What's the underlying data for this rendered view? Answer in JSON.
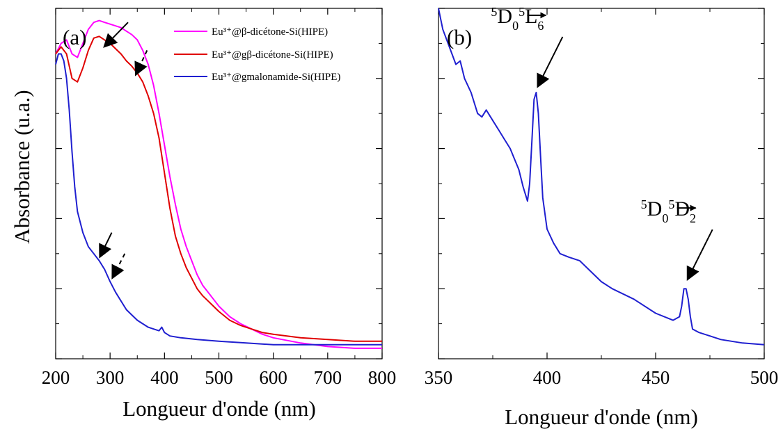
{
  "ylabel": "Absorbance (u.a.)",
  "chart_data": [
    {
      "id": "a",
      "type": "line",
      "panel_label": "(a)",
      "title": "",
      "xlabel": "Longueur d'onde (nm)",
      "ylabel": "Absorbance (u.a.)",
      "xlim": [
        200,
        800
      ],
      "ylim": [
        0,
        1
      ],
      "xticks": [
        200,
        300,
        400,
        500,
        600,
        700,
        800
      ],
      "y_tick_labels": false,
      "grid": false,
      "legend_position": "top-right",
      "series": [
        {
          "name": "Eu³⁺@β-dicétone-Si(HIPE)",
          "color": "#ff00ff",
          "x": [
            200,
            210,
            220,
            230,
            240,
            250,
            260,
            270,
            280,
            290,
            300,
            310,
            320,
            330,
            340,
            350,
            360,
            370,
            380,
            390,
            400,
            410,
            420,
            430,
            440,
            450,
            460,
            470,
            480,
            490,
            500,
            520,
            540,
            560,
            580,
            600,
            650,
            700,
            750,
            800
          ],
          "y": [
            0.87,
            0.9,
            0.91,
            0.87,
            0.86,
            0.9,
            0.94,
            0.96,
            0.965,
            0.96,
            0.955,
            0.95,
            0.945,
            0.935,
            0.925,
            0.91,
            0.88,
            0.84,
            0.78,
            0.7,
            0.61,
            0.52,
            0.44,
            0.37,
            0.32,
            0.28,
            0.24,
            0.21,
            0.19,
            0.17,
            0.15,
            0.12,
            0.1,
            0.085,
            0.07,
            0.06,
            0.045,
            0.035,
            0.03,
            0.03
          ]
        },
        {
          "name": "Eu³⁺@gβ-dicétone-Si(HIPE)",
          "color": "#e00000",
          "x": [
            200,
            210,
            220,
            230,
            240,
            250,
            260,
            270,
            280,
            290,
            300,
            310,
            320,
            330,
            340,
            350,
            360,
            370,
            380,
            390,
            400,
            410,
            420,
            430,
            440,
            450,
            460,
            470,
            480,
            490,
            500,
            520,
            540,
            560,
            580,
            600,
            650,
            700,
            750,
            800
          ],
          "y": [
            0.87,
            0.89,
            0.87,
            0.8,
            0.79,
            0.83,
            0.88,
            0.915,
            0.92,
            0.91,
            0.9,
            0.885,
            0.87,
            0.85,
            0.835,
            0.815,
            0.79,
            0.75,
            0.7,
            0.63,
            0.53,
            0.43,
            0.35,
            0.3,
            0.26,
            0.23,
            0.2,
            0.18,
            0.165,
            0.15,
            0.135,
            0.11,
            0.095,
            0.085,
            0.075,
            0.07,
            0.06,
            0.055,
            0.05,
            0.05
          ]
        },
        {
          "name": "Eu³⁺@gmalonamide-Si(HIPE)",
          "color": "#1f1fd0",
          "x": [
            200,
            205,
            210,
            215,
            220,
            225,
            230,
            235,
            240,
            250,
            260,
            270,
            280,
            290,
            300,
            310,
            320,
            330,
            340,
            350,
            360,
            370,
            380,
            390,
            395,
            400,
            410,
            430,
            460,
            500,
            550,
            600,
            700,
            800
          ],
          "y": [
            0.84,
            0.87,
            0.87,
            0.85,
            0.8,
            0.71,
            0.59,
            0.49,
            0.42,
            0.36,
            0.32,
            0.3,
            0.28,
            0.255,
            0.22,
            0.19,
            0.165,
            0.14,
            0.125,
            0.11,
            0.1,
            0.09,
            0.085,
            0.08,
            0.09,
            0.075,
            0.065,
            0.06,
            0.055,
            0.05,
            0.045,
            0.04,
            0.04,
            0.04
          ]
        }
      ],
      "arrows": [
        {
          "style": "solid",
          "from": [
            333,
            0.96
          ],
          "to": [
            289,
            0.89
          ]
        },
        {
          "style": "dashed",
          "from": [
            368,
            0.88
          ],
          "to": [
            347,
            0.81
          ]
        },
        {
          "style": "solid",
          "from": [
            303,
            0.36
          ],
          "to": [
            281,
            0.29
          ]
        },
        {
          "style": "dashed",
          "from": [
            327,
            0.3
          ],
          "to": [
            304,
            0.23
          ]
        }
      ]
    },
    {
      "id": "b",
      "type": "line",
      "panel_label": "(b)",
      "title": "",
      "xlabel": "Longueur d'onde (nm)",
      "ylabel": "",
      "xlim": [
        350,
        500
      ],
      "ylim": [
        0,
        1
      ],
      "xticks": [
        350,
        400,
        450,
        500
      ],
      "y_tick_labels": false,
      "grid": false,
      "series": [
        {
          "color": "#1f1fd0",
          "x": [
            350,
            352,
            355,
            358,
            360,
            362,
            365,
            368,
            370,
            372,
            375,
            378,
            380,
            383,
            385,
            387,
            389,
            391,
            392,
            393,
            394,
            395,
            396,
            397,
            398,
            400,
            403,
            406,
            410,
            415,
            420,
            425,
            430,
            440,
            450,
            458,
            461,
            462,
            463,
            464,
            465,
            466,
            467,
            470,
            475,
            480,
            490,
            500
          ],
          "y": [
            1.0,
            0.94,
            0.89,
            0.84,
            0.85,
            0.8,
            0.76,
            0.7,
            0.69,
            0.71,
            0.68,
            0.65,
            0.63,
            0.6,
            0.57,
            0.54,
            0.49,
            0.45,
            0.5,
            0.62,
            0.74,
            0.76,
            0.7,
            0.58,
            0.46,
            0.37,
            0.33,
            0.3,
            0.29,
            0.28,
            0.25,
            0.22,
            0.2,
            0.17,
            0.13,
            0.11,
            0.12,
            0.15,
            0.2,
            0.2,
            0.17,
            0.12,
            0.085,
            0.075,
            0.065,
            0.055,
            0.045,
            0.04
          ]
        }
      ],
      "annotations": [
        {
          "state_from": "D",
          "sub_from": "0",
          "sup_from": "5",
          "state_to": "L",
          "sub_to": "6",
          "sup_to": "5",
          "peak_x": 395,
          "peak_y": 0.76
        },
        {
          "state_from": "D",
          "sub_from": "0",
          "sup_from": "5",
          "state_to": "D",
          "sub_to": "2",
          "sup_to": "5",
          "peak_x": 464,
          "peak_y": 0.21
        }
      ]
    }
  ]
}
